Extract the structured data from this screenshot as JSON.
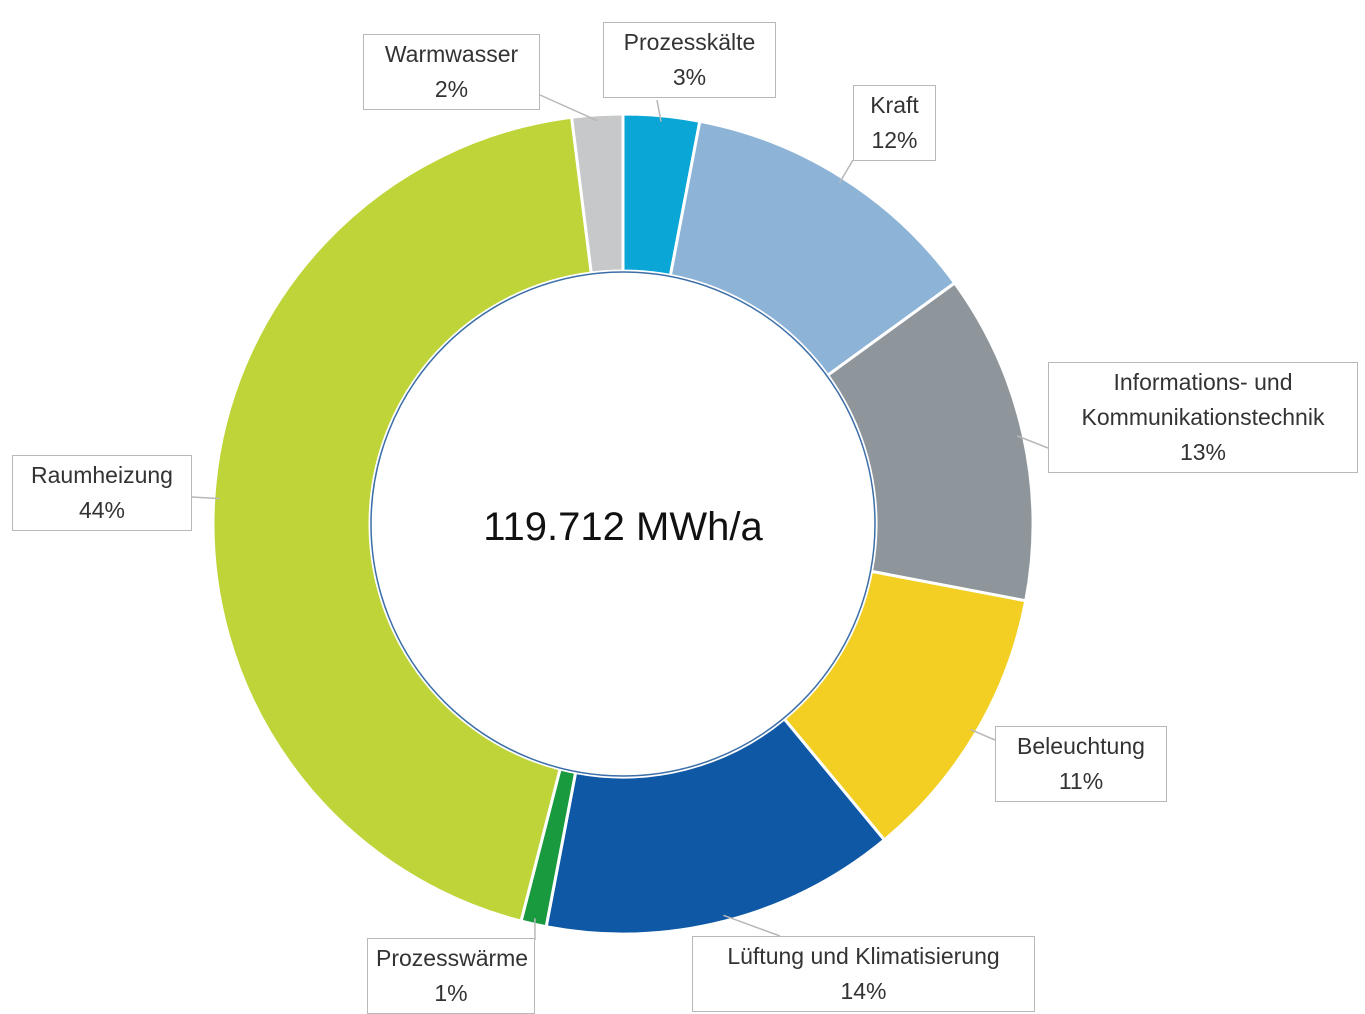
{
  "chart_data": {
    "type": "donut",
    "center_label": "119.712 MWh/a",
    "categories": [
      "Prozesskälte",
      "Kraft",
      "Informations- und\nKommunikationstechnik",
      "Beleuchtung",
      "Lüftung und Klimatisierung",
      "Prozesswärme",
      "Raumheizung",
      "Warmwasser"
    ],
    "values": [
      3,
      12,
      13,
      11,
      14,
      1,
      44,
      2
    ],
    "value_labels": [
      "3%",
      "12%",
      "13%",
      "11%",
      "14%",
      "1%",
      "44%",
      "2%"
    ],
    "colors": [
      "#0aa6d6",
      "#8db3d6",
      "#8e969b",
      "#f2cf22",
      "#0f58a6",
      "#1a9a3e",
      "#bfd439",
      "#c6c8c9"
    ]
  }
}
